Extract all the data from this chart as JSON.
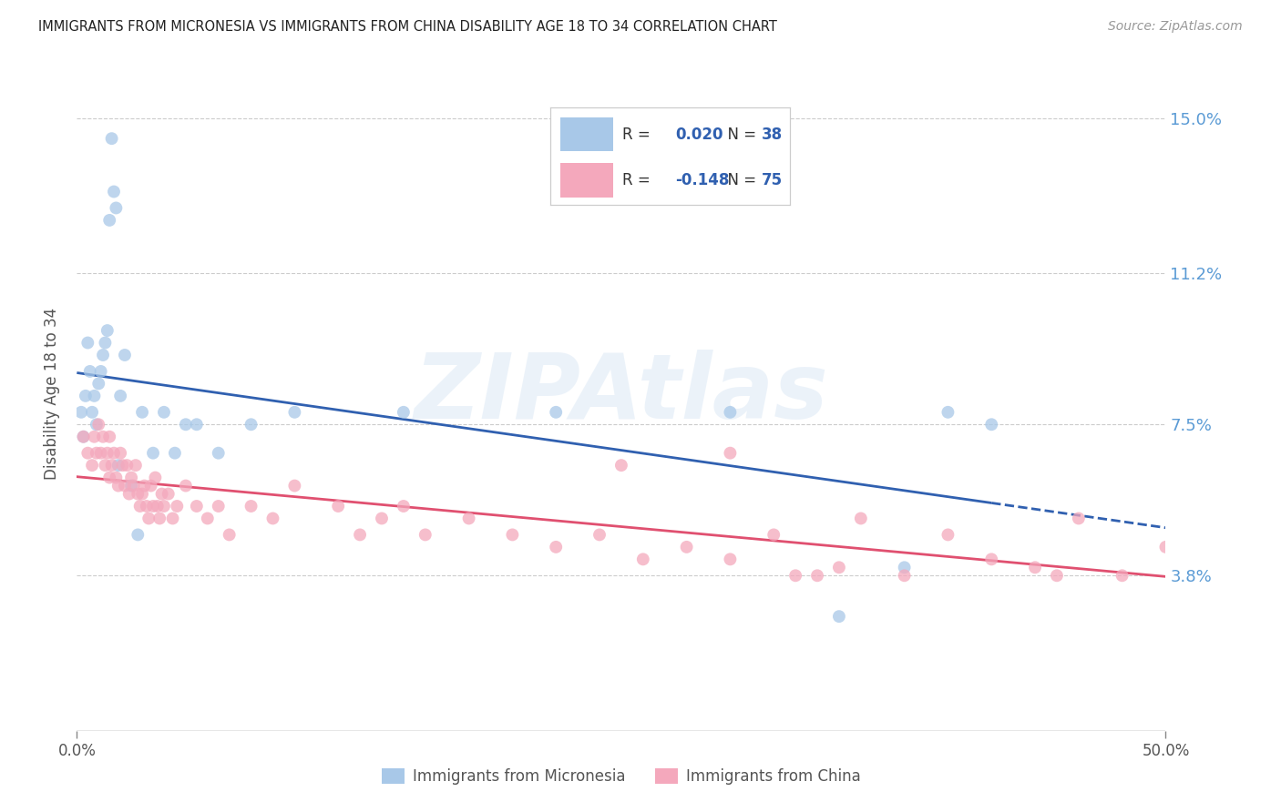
{
  "title": "IMMIGRANTS FROM MICRONESIA VS IMMIGRANTS FROM CHINA DISABILITY AGE 18 TO 34 CORRELATION CHART",
  "source": "Source: ZipAtlas.com",
  "ylabel": "Disability Age 18 to 34",
  "xlim": [
    0.0,
    0.5
  ],
  "ylim": [
    0.0,
    0.165
  ],
  "yticks": [
    0.038,
    0.075,
    0.112,
    0.15
  ],
  "ytick_labels": [
    "3.8%",
    "7.5%",
    "11.2%",
    "15.0%"
  ],
  "xtick_labels": [
    "0.0%",
    "50.0%"
  ],
  "xtick_pos": [
    0.0,
    0.5
  ],
  "micronesia_color": "#A8C8E8",
  "china_color": "#F4A8BC",
  "micronesia_label": "Immigrants from Micronesia",
  "china_label": "Immigrants from China",
  "watermark": "ZIPAtlas",
  "blue_line_color": "#3060B0",
  "pink_line_color": "#E05070",
  "legend_R_color": "#3060B0",
  "legend_N_color": "#3060B0",
  "micronesia_x": [
    0.002,
    0.003,
    0.004,
    0.005,
    0.006,
    0.007,
    0.008,
    0.009,
    0.01,
    0.011,
    0.012,
    0.013,
    0.014,
    0.015,
    0.016,
    0.017,
    0.018,
    0.019,
    0.02,
    0.022,
    0.025,
    0.028,
    0.03,
    0.035,
    0.04,
    0.045,
    0.05,
    0.055,
    0.065,
    0.08,
    0.1,
    0.15,
    0.22,
    0.3,
    0.35,
    0.38,
    0.4,
    0.42
  ],
  "micronesia_y": [
    0.078,
    0.072,
    0.082,
    0.095,
    0.088,
    0.078,
    0.082,
    0.075,
    0.085,
    0.088,
    0.092,
    0.095,
    0.098,
    0.125,
    0.145,
    0.132,
    0.128,
    0.065,
    0.082,
    0.092,
    0.06,
    0.048,
    0.078,
    0.068,
    0.078,
    0.068,
    0.075,
    0.075,
    0.068,
    0.075,
    0.078,
    0.078,
    0.078,
    0.078,
    0.028,
    0.04,
    0.078,
    0.075
  ],
  "china_x": [
    0.003,
    0.005,
    0.007,
    0.008,
    0.009,
    0.01,
    0.011,
    0.012,
    0.013,
    0.014,
    0.015,
    0.015,
    0.016,
    0.017,
    0.018,
    0.019,
    0.02,
    0.021,
    0.022,
    0.023,
    0.024,
    0.025,
    0.026,
    0.027,
    0.028,
    0.029,
    0.03,
    0.031,
    0.032,
    0.033,
    0.034,
    0.035,
    0.036,
    0.037,
    0.038,
    0.039,
    0.04,
    0.042,
    0.044,
    0.046,
    0.05,
    0.055,
    0.06,
    0.065,
    0.07,
    0.08,
    0.09,
    0.1,
    0.12,
    0.13,
    0.14,
    0.15,
    0.16,
    0.18,
    0.2,
    0.22,
    0.24,
    0.26,
    0.28,
    0.3,
    0.32,
    0.34,
    0.36,
    0.38,
    0.4,
    0.42,
    0.44,
    0.46,
    0.48,
    0.5,
    0.25,
    0.3,
    0.33,
    0.35,
    0.45
  ],
  "china_y": [
    0.072,
    0.068,
    0.065,
    0.072,
    0.068,
    0.075,
    0.068,
    0.072,
    0.065,
    0.068,
    0.062,
    0.072,
    0.065,
    0.068,
    0.062,
    0.06,
    0.068,
    0.065,
    0.06,
    0.065,
    0.058,
    0.062,
    0.06,
    0.065,
    0.058,
    0.055,
    0.058,
    0.06,
    0.055,
    0.052,
    0.06,
    0.055,
    0.062,
    0.055,
    0.052,
    0.058,
    0.055,
    0.058,
    0.052,
    0.055,
    0.06,
    0.055,
    0.052,
    0.055,
    0.048,
    0.055,
    0.052,
    0.06,
    0.055,
    0.048,
    0.052,
    0.055,
    0.048,
    0.052,
    0.048,
    0.045,
    0.048,
    0.042,
    0.045,
    0.042,
    0.048,
    0.038,
    0.052,
    0.038,
    0.048,
    0.042,
    0.04,
    0.052,
    0.038,
    0.045,
    0.065,
    0.068,
    0.038,
    0.04,
    0.038
  ]
}
